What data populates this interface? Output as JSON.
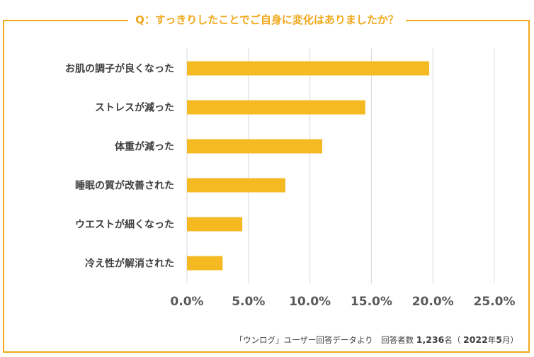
{
  "title": "Q：すっきりしたことでご自身に変化はありましたか？",
  "chart_data": {
    "type": "bar",
    "orientation": "horizontal",
    "categories": [
      "お肌の調子が良くなった",
      "ストレスが減った",
      "体重が減った",
      "睡眠の質が改善された",
      "ウエストが細くなった",
      "冷え性が解消された"
    ],
    "values": [
      19.7,
      14.5,
      11.0,
      8.0,
      4.5,
      2.9
    ],
    "xlim": [
      0,
      25
    ],
    "xticks": [
      0,
      5,
      10,
      15,
      20,
      25
    ],
    "xtick_labels": [
      "0.0%",
      "5.0%",
      "10.0%",
      "15.0%",
      "20.0%",
      "25.0%"
    ],
    "grid": true,
    "bar_color": "#f5b921",
    "frame_color": "#f0a81c"
  },
  "footnote": {
    "source": "「ウンログ」ユーザー回答データより　回答者数",
    "count": "1,236",
    "unit": "名（",
    "year": "2022",
    "year_unit": "年",
    "month": "5",
    "month_unit": "月）"
  }
}
